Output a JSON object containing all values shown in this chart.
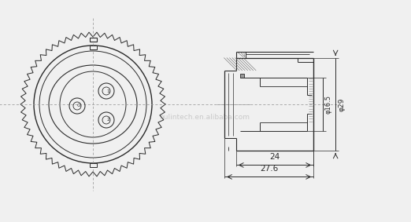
{
  "bg_color": "#f0f0f0",
  "line_color": "#2a2a2a",
  "dim_color": "#2a2a2a",
  "watermark": "nulintech.en.alibaba.com",
  "dim_phi29": "φ29",
  "dim_phi165": "φ16.5",
  "dim_24": "24",
  "dim_276": "27.6",
  "crosshair_color": "#999999",
  "hatch_color": "#555555"
}
